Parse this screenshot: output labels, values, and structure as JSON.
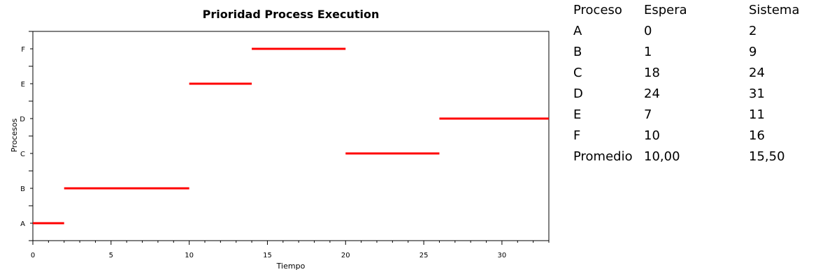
{
  "chart_data": {
    "type": "gantt",
    "title": "Prioridad Process Execution",
    "xlabel": "Tiempo",
    "ylabel": "Procesos",
    "xlim": [
      0,
      33
    ],
    "xticks": [
      0,
      5,
      10,
      15,
      20,
      25,
      30
    ],
    "xtick_labels": [
      "0",
      "5",
      "10",
      "15",
      "20",
      "25",
      "30"
    ],
    "categories": [
      "A",
      "B",
      "C",
      "D",
      "E",
      "F"
    ],
    "tasks": [
      {
        "process": "A",
        "start": 0,
        "end": 2
      },
      {
        "process": "B",
        "start": 2,
        "end": 10
      },
      {
        "process": "E",
        "start": 10,
        "end": 14
      },
      {
        "process": "F",
        "start": 14,
        "end": 20
      },
      {
        "process": "C",
        "start": 20,
        "end": 26
      },
      {
        "process": "D",
        "start": 26,
        "end": 33
      }
    ],
    "bar_color": "#ff0000",
    "grid": false,
    "legend": "none"
  },
  "table": {
    "headers": [
      "Proceso",
      "Espera",
      "Sistema"
    ],
    "rows": [
      [
        "A",
        "0",
        "2"
      ],
      [
        "B",
        "1",
        "9"
      ],
      [
        "C",
        "18",
        "24"
      ],
      [
        "D",
        "24",
        "31"
      ],
      [
        "E",
        "7",
        "11"
      ],
      [
        "F",
        "10",
        "16"
      ],
      [
        "Promedio",
        "10,00",
        "15,50"
      ]
    ]
  }
}
